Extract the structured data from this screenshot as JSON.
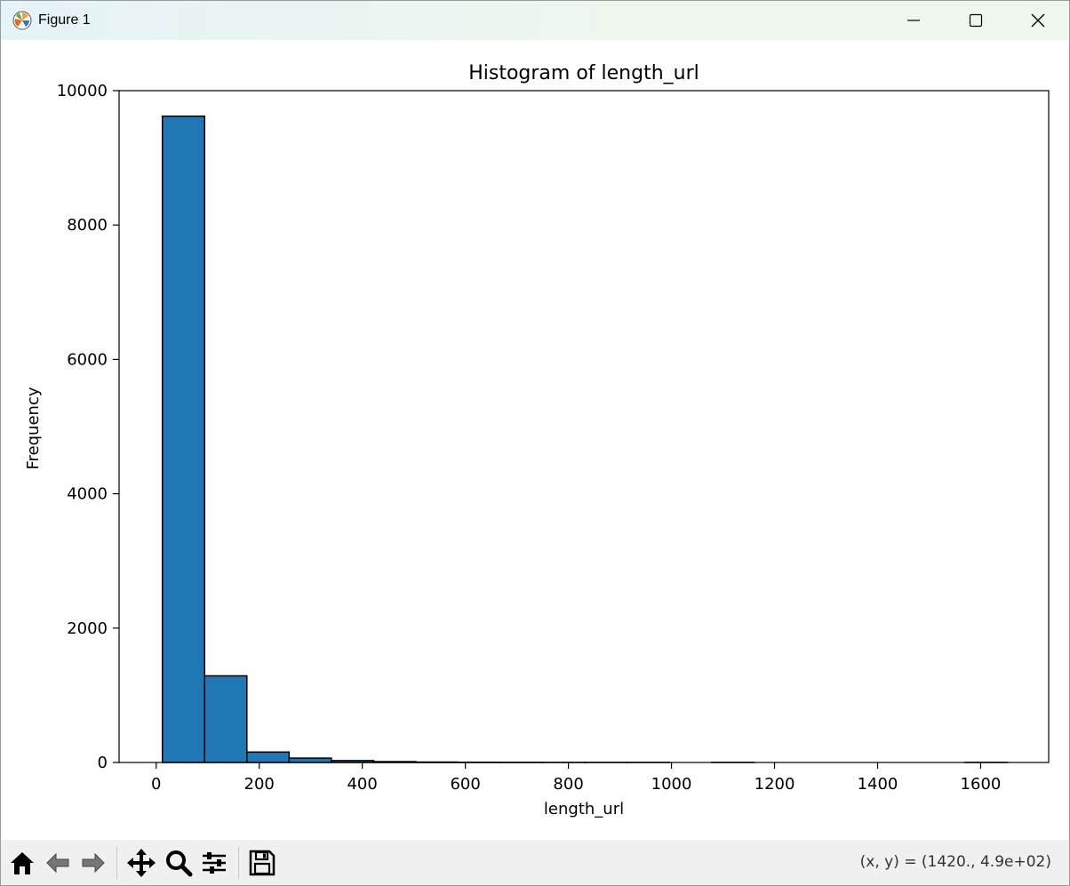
{
  "window": {
    "title": "Figure 1",
    "icon": "matplotlib-logo-icon",
    "controls": [
      "minimize-icon",
      "maximize-icon",
      "close-icon"
    ]
  },
  "colors": {
    "bar_fill": "#1f77b4",
    "bar_edge": "#000000",
    "toolbar_bg": "#f0f0f0"
  },
  "chart_data": {
    "type": "bar",
    "title": "Histogram of length_url",
    "xlabel": "length_url",
    "ylabel": "Frequency",
    "xlim": [
      -72,
      1732
    ],
    "ylim": [
      0,
      10000
    ],
    "xticks": [
      0,
      200,
      400,
      600,
      800,
      1000,
      1200,
      1400,
      1600
    ],
    "yticks": [
      0,
      2000,
      4000,
      6000,
      8000,
      10000
    ],
    "bins": [
      {
        "x0": 12,
        "x1": 94,
        "count": 9620
      },
      {
        "x0": 94,
        "x1": 176,
        "count": 1290
      },
      {
        "x0": 176,
        "x1": 258,
        "count": 155
      },
      {
        "x0": 258,
        "x1": 340,
        "count": 65
      },
      {
        "x0": 340,
        "x1": 422,
        "count": 28
      },
      {
        "x0": 422,
        "x1": 504,
        "count": 13
      },
      {
        "x0": 504,
        "x1": 586,
        "count": 6
      },
      {
        "x0": 586,
        "x1": 668,
        "count": 3
      },
      {
        "x0": 668,
        "x1": 750,
        "count": 2
      },
      {
        "x0": 750,
        "x1": 832,
        "count": 1
      },
      {
        "x0": 832,
        "x1": 914,
        "count": 1
      },
      {
        "x0": 914,
        "x1": 996,
        "count": 1
      },
      {
        "x0": 996,
        "x1": 1078,
        "count": 0
      },
      {
        "x0": 1078,
        "x1": 1160,
        "count": 1
      },
      {
        "x0": 1160,
        "x1": 1242,
        "count": 0
      },
      {
        "x0": 1242,
        "x1": 1324,
        "count": 0
      },
      {
        "x0": 1324,
        "x1": 1406,
        "count": 0
      },
      {
        "x0": 1406,
        "x1": 1488,
        "count": 0
      },
      {
        "x0": 1488,
        "x1": 1570,
        "count": 0
      },
      {
        "x0": 1570,
        "x1": 1652,
        "count": 1
      }
    ],
    "grid": false,
    "legend": "none"
  },
  "toolbar": {
    "tools": [
      "home-icon",
      "back-icon",
      "forward-icon",
      "pan-icon",
      "zoom-icon",
      "configure-subplots-icon",
      "save-icon"
    ],
    "coords": "(x, y) = (1420., 4.9e+02)"
  }
}
